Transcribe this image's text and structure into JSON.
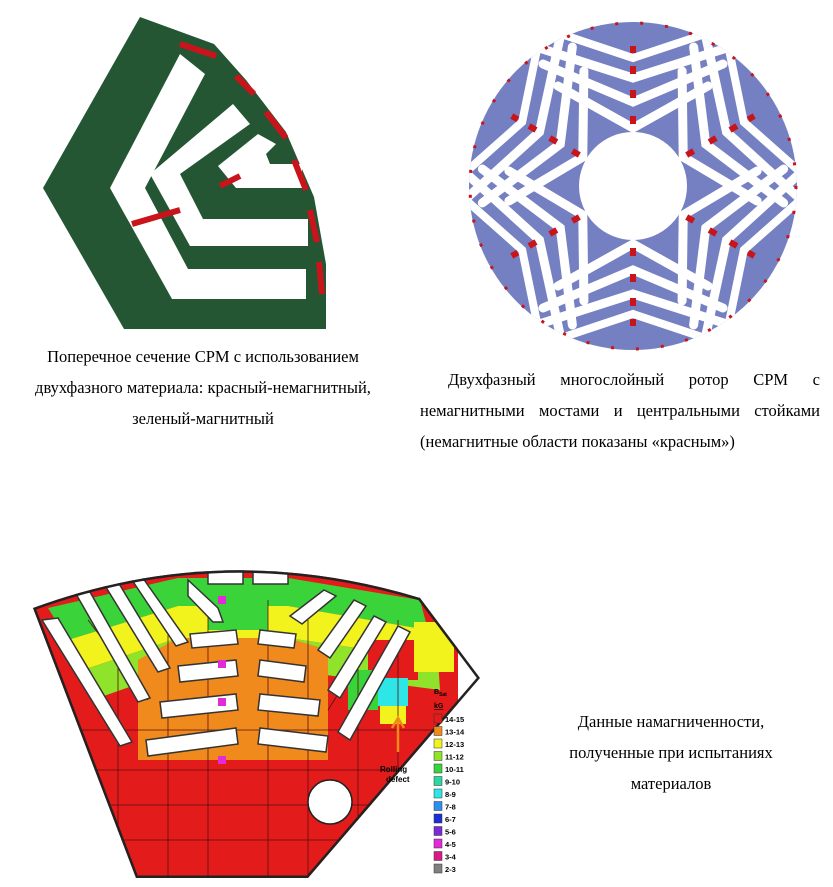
{
  "captions": {
    "left": "Поперечное сечение СРМ с использованием двухфазного материала: красный-немагнитный, зеленый-магнитный",
    "right": "Двухфазный многослойный ротор СРМ с немагнитными мостами и центральными стойками (немагнитные области показаны «красным»)",
    "bottom": "Данные намагниченности, полученные при испытаниях материалов"
  },
  "figure3": {
    "legend_title": "B",
    "legend_title_sub": "Sat",
    "legend_unit": "kG",
    "annotation": "Rolling defect",
    "legend": [
      {
        "label": "14-15",
        "color": "#e31b1b"
      },
      {
        "label": "13-14",
        "color": "#f08a1c"
      },
      {
        "label": "12-13",
        "color": "#f2f21c"
      },
      {
        "label": "11-12",
        "color": "#8fe32b"
      },
      {
        "label": "10-11",
        "color": "#3ad43a"
      },
      {
        "label": "9-10",
        "color": "#2ed6a0"
      },
      {
        "label": "8-9",
        "color": "#2ee6e6"
      },
      {
        "label": "7-8",
        "color": "#2f8ff0"
      },
      {
        "label": "6-7",
        "color": "#1a2fd6"
      },
      {
        "label": "5-6",
        "color": "#7a2ad6"
      },
      {
        "label": "4-5",
        "color": "#e02bd6"
      },
      {
        "label": "3-4",
        "color": "#d61a8a"
      },
      {
        "label": "2-3",
        "color": "#808080"
      }
    ]
  },
  "colors": {
    "magnetic_green": "#245634",
    "nonmagnetic_red": "#c8141a",
    "rotor_blue": "#7480c2"
  }
}
